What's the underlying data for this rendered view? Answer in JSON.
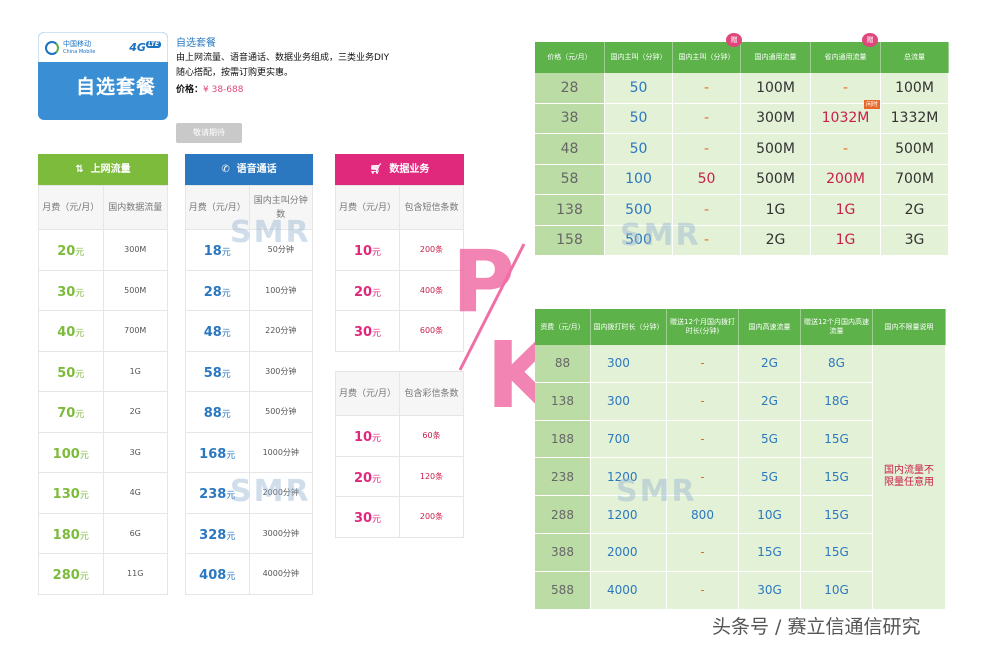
{
  "logo": {
    "brand_cn": "中国移动",
    "brand_en": "China Mobile",
    "network": "4G",
    "network_badge": "LTE",
    "title": "自选套餐"
  },
  "intro": {
    "heading": "自选套餐",
    "body": "由上网流量、语音通话、数据业务组成，三类业务DIY随心搭配，按需订购更实惠。",
    "price_label": "价格：",
    "price_value": "¥ 38-688",
    "button": "敬请期待"
  },
  "data_table": {
    "title": "上网流量",
    "icon": "updown-arrows-icon",
    "color": "#7dbb3c",
    "col1": "月费（元/月）",
    "col2": "国内数据流量",
    "rows": [
      [
        "20",
        "300M"
      ],
      [
        "30",
        "500M"
      ],
      [
        "40",
        "700M"
      ],
      [
        "50",
        "1G"
      ],
      [
        "70",
        "2G"
      ],
      [
        "100",
        "3G"
      ],
      [
        "130",
        "4G"
      ],
      [
        "180",
        "6G"
      ],
      [
        "280",
        "11G"
      ]
    ],
    "unit": "元"
  },
  "voice_table": {
    "title": "语音通话",
    "icon": "phone-icon",
    "color": "#2b78c0",
    "col1": "月费（元/月）",
    "col2": "国内主叫分钟数",
    "rows": [
      [
        "18",
        "50分钟"
      ],
      [
        "28",
        "100分钟"
      ],
      [
        "48",
        "220分钟"
      ],
      [
        "58",
        "300分钟"
      ],
      [
        "88",
        "500分钟"
      ],
      [
        "168",
        "1000分钟"
      ],
      [
        "238",
        "2000分钟"
      ],
      [
        "328",
        "3000分钟"
      ],
      [
        "408",
        "4000分钟"
      ]
    ],
    "unit": "元"
  },
  "sms_table": {
    "title": "数据业务",
    "icon": "cart-icon",
    "color": "#e0287d",
    "col1": "月费（元/月）",
    "col2": "包含短信条数",
    "rows": [
      [
        "10",
        "200条"
      ],
      [
        "20",
        "400条"
      ],
      [
        "30",
        "600条"
      ]
    ],
    "mms_col1": "月费（元/月）",
    "mms_col2": "包含彩信条数",
    "mms_rows": [
      [
        "10",
        "60条"
      ],
      [
        "20",
        "120条"
      ],
      [
        "30",
        "200条"
      ]
    ],
    "unit": "元"
  },
  "pk": {
    "p": "P",
    "k": "K"
  },
  "watermark": "SMR",
  "table_top": {
    "headers": [
      "价格（元/月）",
      "国内主叫（分钟）",
      "国内主叫（分钟）",
      "国内通用流量",
      "省内通用流量",
      "总流量"
    ],
    "badge": "赠",
    "tag": "闲时",
    "rows": [
      [
        "28",
        "50",
        "-",
        "100M",
        "-",
        "100M"
      ],
      [
        "38",
        "50",
        "-",
        "300M",
        "1032M",
        "1332M"
      ],
      [
        "48",
        "50",
        "-",
        "500M",
        "-",
        "500M"
      ],
      [
        "58",
        "100",
        "50",
        "500M",
        "200M",
        "700M"
      ],
      [
        "138",
        "500",
        "-",
        "1G",
        "1G",
        "2G"
      ],
      [
        "158",
        "500",
        "-",
        "2G",
        "1G",
        "3G"
      ]
    ]
  },
  "table_bottom": {
    "headers": [
      "资费（元/月）",
      "国内拨打时长（分钟）",
      "赠送12个月国内拨打时长(分钟)",
      "国内高速流量",
      "赠送12个月国内高速流量",
      "国内不限量说明"
    ],
    "rows": [
      [
        "88",
        "300",
        "-",
        "2G",
        "8G"
      ],
      [
        "138",
        "300",
        "-",
        "2G",
        "18G"
      ],
      [
        "188",
        "700",
        "-",
        "5G",
        "15G"
      ],
      [
        "238",
        "1200",
        "-",
        "5G",
        "15G"
      ],
      [
        "288",
        "1200",
        "800",
        "10G",
        "15G"
      ],
      [
        "388",
        "2000",
        "-",
        "15G",
        "15G"
      ],
      [
        "588",
        "4000",
        "-",
        "30G",
        "10G"
      ]
    ],
    "note": "国内流量不限量任意用"
  },
  "source": "头条号 / 赛立信通信研究"
}
